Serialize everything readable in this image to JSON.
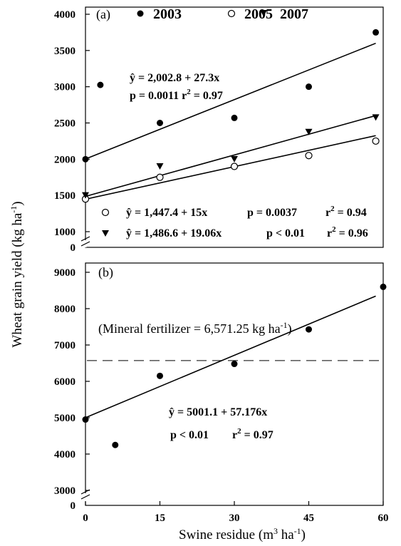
{
  "chart_data": [
    {
      "type": "scatter",
      "panel_label": "(a)",
      "ylabel": "Wheat grain yield (kg ha-1)",
      "xlabel": "Swine residue (m3 ha-1)",
      "xlim": [
        0,
        60
      ],
      "ylim": [
        1000,
        4000
      ],
      "y_break": true,
      "grid": false,
      "legend_position": "top",
      "series": [
        {
          "name": "2003",
          "marker": "filled-circle",
          "points": [
            [
              0,
              2000
            ],
            [
              3,
              3025
            ],
            [
              15,
              2500
            ],
            [
              30,
              2570
            ],
            [
              45,
              3000
            ],
            [
              60,
              3750
            ]
          ],
          "fit": {
            "intercept": 2002.8,
            "slope": 27.3
          }
        },
        {
          "name": "2005",
          "marker": "open-circle",
          "points": [
            [
              0,
              1450
            ],
            [
              15,
              1750
            ],
            [
              30,
              1900
            ],
            [
              45,
              2050
            ],
            [
              60,
              2250
            ]
          ],
          "fit": {
            "intercept": 1447.4,
            "slope": 15
          }
        },
        {
          "name": "2007",
          "marker": "filled-triangle-down",
          "points": [
            [
              0,
              1500
            ],
            [
              15,
              1900
            ],
            [
              30,
              2000
            ],
            [
              45,
              2375
            ],
            [
              60,
              2575
            ]
          ],
          "fit": {
            "intercept": 1486.6,
            "slope": 19.06
          }
        }
      ],
      "annotations": [
        {
          "yhat": "ŷ",
          "eq": " = 2,002.8 + 27.3x",
          "stats": "p = 0.0011 r2 = 0.97"
        },
        {
          "yhat": "ŷ",
          "eq": " = 1,447.4 + 15x     p = 0.0037    r2 = 0.94"
        },
        {
          "yhat": "ŷ",
          "eq": " = 1,486.6 + 19.06x    p < 0.01    r2 = 0.96"
        }
      ]
    },
    {
      "type": "scatter",
      "panel_label": "(b)",
      "xlim": [
        0,
        60
      ],
      "ylim": [
        3000,
        9000
      ],
      "y_break": true,
      "grid": false,
      "series": [
        {
          "name": "",
          "marker": "filled-circle",
          "points": [
            [
              0,
              4950
            ],
            [
              6,
              4250
            ],
            [
              15,
              6150
            ],
            [
              30,
              6480
            ],
            [
              45,
              7430
            ],
            [
              60,
              8600
            ]
          ],
          "fit": {
            "intercept": 5001.1,
            "slope": 57.176
          }
        }
      ],
      "reference_line": {
        "y": 6571.25,
        "label": "(Mineral fertilizer = 6,571.25 kg ha-1)"
      },
      "annotations": [
        {
          "yhat": "ŷ",
          "eq": " = 5001.1 +  57.176x",
          "stats": "p < 0.01    r2 = 0.97"
        }
      ]
    }
  ],
  "text": {
    "ylabel_main": "Wheat grain yield (kg ha",
    "ylabel_exp": "-1",
    "ylabel_close": ")",
    "xlabel_main": "Swine residue (m",
    "xlabel_exp1": "3",
    "xlabel_mid": " ha",
    "xlabel_exp2": "-1",
    "xlabel_close": ")",
    "a_ticks": [
      "4000",
      "3500",
      "3000",
      "2500",
      "2000",
      "1500",
      "1000"
    ],
    "a_zero": "0",
    "b_ticks": [
      "9000",
      "8000",
      "7000",
      "6000",
      "5000",
      "4000",
      "3000"
    ],
    "b_zero": "0",
    "x_ticks": [
      "0",
      "15",
      "30",
      "45",
      "60"
    ],
    "panel_a": "(a)",
    "panel_b": "(b)",
    "legend": [
      "2003",
      "2005",
      "2007"
    ],
    "eq1": " = 2,002.8 + 27.3x",
    "eq1b": "p = 0.0011 r",
    "eq2": " = 1,447.4 + 15x",
    "eq2b": "p = 0.0037",
    "eq2c": "r",
    "eq2d": " = 0.94",
    "eq3": " = 1,486.6 + 19.06x",
    "eq3b": "p < 0.01",
    "eq3c": "r",
    "eq3d": " = 0.96",
    "yhat": "ŷ",
    "sup2": "2",
    "eq1d": " = 0.97",
    "min_a": "(Mineral fertilizer = 6,571.25 kg ha",
    "min_exp": "-1",
    "min_close": ")",
    "eqb1": " = 5001.1 +  57.176x",
    "eqb2": "p < 0.01",
    "eqb3": "r",
    "eqb4": " = 0.97"
  },
  "colors": {
    "ink": "#000000",
    "background": "#ffffff"
  }
}
